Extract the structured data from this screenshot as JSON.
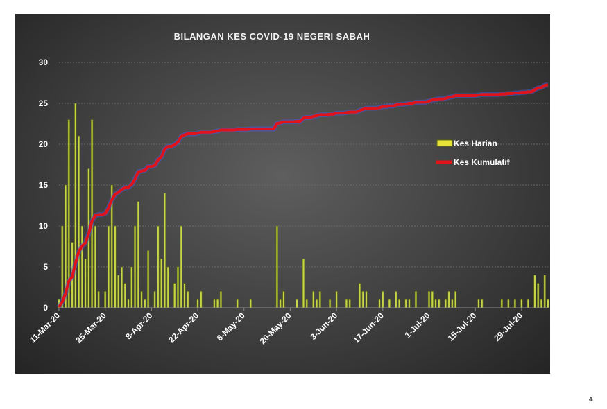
{
  "page": {
    "number": "4"
  },
  "colors": {
    "bar_fill": "#c8d44a",
    "bar_stroke": "#5a6a12",
    "line": "#e0121a",
    "line_glow": "#4a5ad0",
    "text": "#ffffff"
  },
  "chart_data": {
    "type": "bar+line",
    "title": "BILANGAN KES COVID-19 NEGERI SABAH",
    "xlabel": "",
    "ylabel": "",
    "x_start": "2020-03-11",
    "x_end": "2020-07-31",
    "ylim_left": [
      0,
      30
    ],
    "ylim_right": [
      0,
      450
    ],
    "y_ticks_left": [
      "0",
      "5",
      "10",
      "15",
      "20",
      "25",
      "30"
    ],
    "y_ticks_right": [
      "0",
      "50",
      "100",
      "150",
      "200",
      "250",
      "300",
      "350",
      "400",
      "450"
    ],
    "x_tick_labels": [
      "11-Mar-20",
      "25-Mar-20",
      "8-Apr-20",
      "22-Apr-20",
      "6-May-20",
      "20-May-20",
      "3-Jun-20",
      "17-Jun-20",
      "1-Jul-20",
      "15-Jul-20",
      "29-Jul-20"
    ],
    "grid": "horizontal dashed",
    "legend_position": "right",
    "series": [
      {
        "name": "Kes Harian",
        "type": "bar",
        "axis": "left",
        "values": [
          1,
          10,
          15,
          23,
          8,
          25,
          21,
          10,
          6,
          17,
          23,
          10,
          2,
          0,
          2,
          10,
          15,
          10,
          4,
          5,
          3,
          1,
          5,
          10,
          13,
          2,
          1,
          7,
          0,
          2,
          10,
          6,
          14,
          5,
          0,
          3,
          5,
          10,
          3,
          2,
          0,
          0,
          1,
          2,
          0,
          0,
          0,
          1,
          1,
          2,
          0,
          0,
          0,
          0,
          1,
          0,
          0,
          0,
          1,
          0,
          0,
          0,
          0,
          0,
          0,
          0,
          10,
          1,
          2,
          0,
          0,
          0,
          1,
          0,
          6,
          1,
          0,
          2,
          1,
          2,
          0,
          0,
          1,
          0,
          2,
          0,
          0,
          1,
          1,
          0,
          0,
          3,
          2,
          2,
          0,
          0,
          0,
          1,
          2,
          0,
          1,
          0,
          2,
          1,
          0,
          1,
          1,
          0,
          2,
          0,
          0,
          0,
          2,
          2,
          1,
          1,
          0,
          1,
          2,
          1,
          2,
          0,
          0,
          0,
          0,
          0,
          0,
          1,
          1,
          0,
          0,
          0,
          0,
          0,
          1,
          0,
          1,
          0,
          1,
          0,
          1,
          0,
          1,
          0,
          4,
          3,
          1,
          4,
          1
        ]
      },
      {
        "name": "Kes Kumulatif",
        "type": "line",
        "axis": "right",
        "values": [
          1,
          11,
          26,
          49,
          57,
          82,
          103,
          113,
          119,
          136,
          159,
          169,
          171,
          171,
          173,
          183,
          198,
          208,
          212,
          217,
          220,
          221,
          226,
          236,
          249,
          251,
          252,
          259,
          259,
          261,
          271,
          277,
          291,
          296,
          296,
          299,
          304,
          314,
          317,
          319,
          319,
          319,
          320,
          322,
          322,
          322,
          322,
          323,
          324,
          326,
          326,
          326,
          326,
          326,
          327,
          327,
          327,
          327,
          328,
          328,
          328,
          328,
          328,
          328,
          328,
          328,
          338,
          339,
          341,
          341,
          341,
          341,
          342,
          342,
          348,
          349,
          349,
          351,
          352,
          354,
          354,
          354,
          355,
          355,
          357,
          357,
          357,
          358,
          359,
          359,
          359,
          362,
          364,
          366,
          366,
          366,
          366,
          367,
          369,
          369,
          370,
          370,
          372,
          373,
          373,
          374,
          375,
          375,
          377,
          377,
          377,
          377,
          379,
          381,
          382,
          383,
          383,
          384,
          386,
          387,
          389,
          389,
          389,
          389,
          389,
          389,
          389,
          390,
          391,
          391,
          391,
          391,
          391,
          391,
          392,
          392,
          393,
          393,
          394,
          394,
          395,
          395,
          396,
          396,
          400,
          403,
          404,
          408,
          409
        ]
      }
    ]
  }
}
